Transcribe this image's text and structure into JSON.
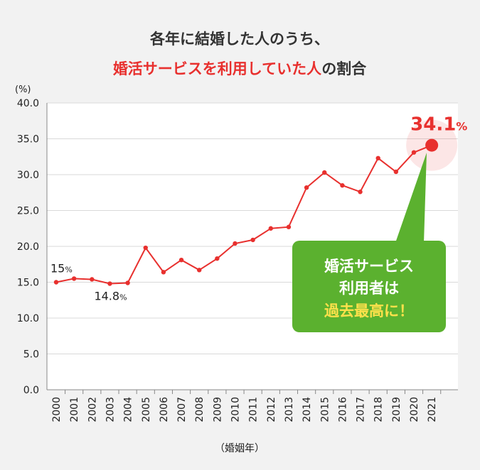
{
  "title": {
    "line1": "各年に結婚した人のうち、",
    "line2_red": "婚活サービスを利用していた人",
    "line2_rest": "の割合"
  },
  "colors": {
    "accent": "#e8302e",
    "callout": "#5bb12f",
    "callout_highlight": "#ffe14b",
    "grid": "#d9d9d9"
  },
  "chart_data": {
    "type": "line",
    "y_unit_label": "(%)",
    "xlabel": "（婚姻年）",
    "ylim": [
      0,
      40
    ],
    "y_ticks": [
      "0.0",
      "5.0",
      "10.0",
      "15.0",
      "20.0",
      "25.0",
      "30.0",
      "35.0",
      "40.0"
    ],
    "categories": [
      "2000",
      "2001",
      "2002",
      "2003",
      "2004",
      "2005",
      "2006",
      "2007",
      "2008",
      "2009",
      "2010",
      "2011",
      "2012",
      "2013",
      "2014",
      "2015",
      "2016",
      "2017",
      "2018",
      "2019",
      "2020",
      "2021"
    ],
    "series": [
      {
        "values": [
          15.0,
          15.5,
          15.4,
          14.8,
          14.9,
          19.8,
          16.4,
          18.1,
          16.7,
          18.3,
          20.4,
          20.9,
          22.5,
          22.7,
          28.2,
          30.3,
          28.5,
          27.6,
          32.3,
          30.4,
          33.1,
          34.1
        ]
      }
    ],
    "annotations": [
      {
        "index": 0,
        "value_text": "15",
        "unit_text": "%"
      },
      {
        "index": 3,
        "value_text": "14.8",
        "unit_text": "%"
      },
      {
        "index": 21,
        "value_text": "34.1",
        "unit_text": "%"
      }
    ],
    "callout": {
      "line1": "婚活サービス",
      "line2": "利用者は",
      "line3": "過去最高に！"
    },
    "grid": true
  }
}
